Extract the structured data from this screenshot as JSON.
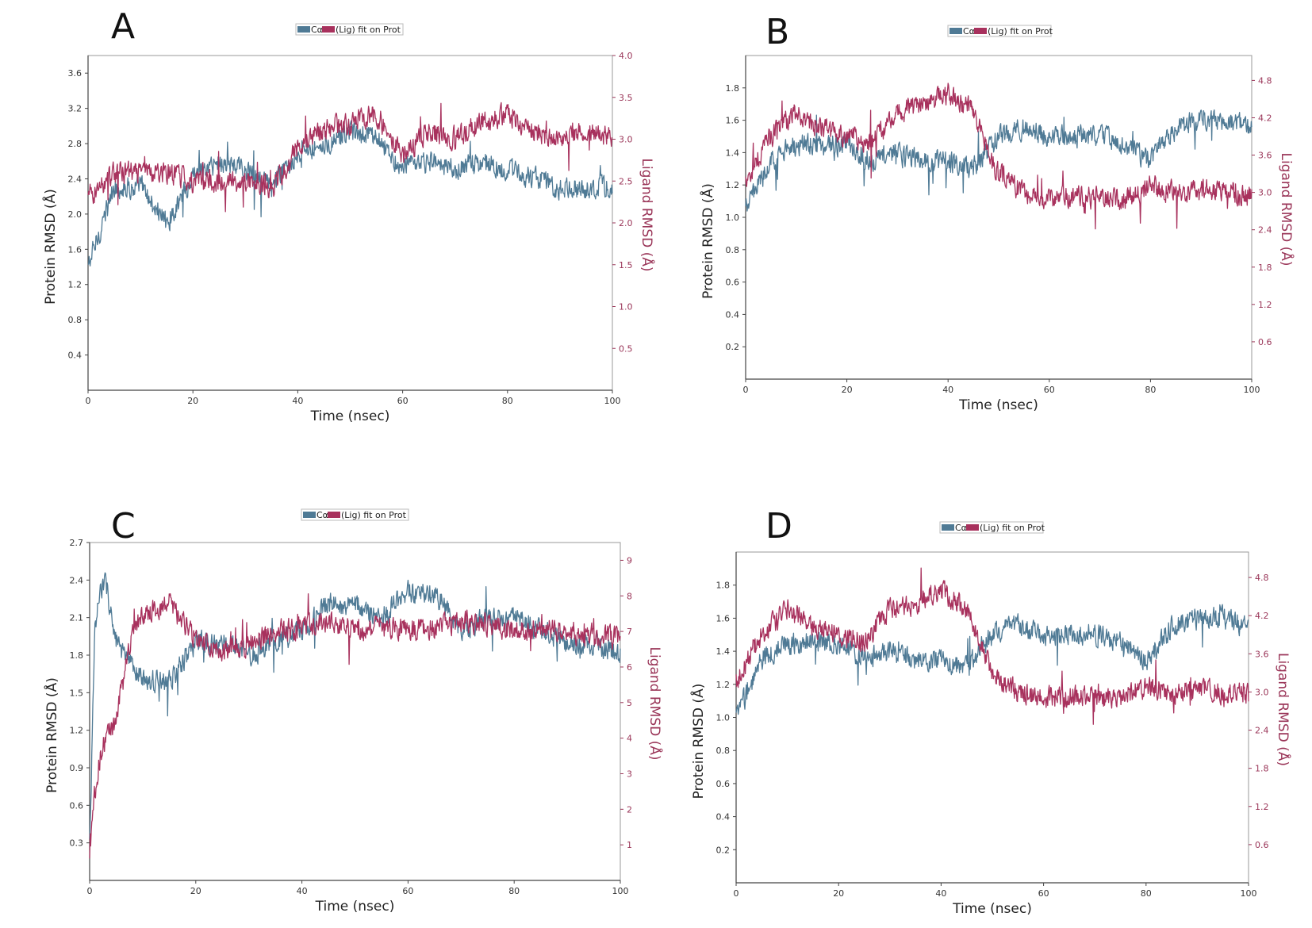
{
  "colors": {
    "protein": "#4f7a95",
    "ligand": "#a8315d",
    "axis": "#555555",
    "right_axis_text": "#9a3558"
  },
  "chart_data": [
    {
      "panel": "A",
      "type": "line",
      "legend": [
        "Cα",
        "(Lig) fit on Prot"
      ],
      "xlabel": "Time (nsec)",
      "ylabel": "Protein RMSD (Å)",
      "y2label": "Ligand RMSD (Å)",
      "xlim": [
        0,
        100
      ],
      "ylim": [
        0,
        3.8
      ],
      "y2lim": [
        0,
        4.0
      ],
      "x_ticks": [
        "0",
        "20",
        "40",
        "60",
        "80",
        "100"
      ],
      "y_ticks": [
        "0.4",
        "0.8",
        "1.2",
        "1.6",
        "2.0",
        "2.4",
        "2.8",
        "3.2",
        "3.6"
      ],
      "y2_ticks": [
        "0.5",
        "1.0",
        "1.5",
        "2.0",
        "2.5",
        "3.0",
        "3.5",
        "4.0"
      ],
      "series": [
        {
          "name": "Protein RMSD (Cα)",
          "axis": "left",
          "x": [
            0,
            5,
            10,
            15,
            20,
            25,
            30,
            35,
            40,
            45,
            50,
            55,
            60,
            65,
            70,
            75,
            80,
            85,
            90,
            95,
            100
          ],
          "y": [
            1.4,
            2.3,
            2.3,
            1.9,
            2.4,
            2.6,
            2.5,
            2.3,
            2.7,
            2.8,
            2.9,
            2.9,
            2.5,
            2.6,
            2.5,
            2.6,
            2.5,
            2.4,
            2.3,
            2.3,
            2.3
          ]
        },
        {
          "name": "Ligand RMSD (Lig fit on Prot)",
          "axis": "right",
          "x": [
            0,
            5,
            10,
            15,
            20,
            25,
            30,
            35,
            40,
            45,
            50,
            55,
            60,
            65,
            70,
            75,
            80,
            85,
            90,
            95,
            100
          ],
          "y": [
            2.3,
            2.6,
            2.6,
            2.6,
            2.5,
            2.5,
            2.5,
            2.4,
            2.9,
            3.1,
            3.2,
            3.3,
            2.8,
            3.1,
            3.0,
            3.2,
            3.3,
            3.1,
            3.0,
            3.1,
            3.0
          ]
        }
      ]
    },
    {
      "panel": "B",
      "type": "line",
      "legend": [
        "Cα",
        "(Lig) fit on Prot"
      ],
      "xlabel": "Time (nsec)",
      "ylabel": "Protein RMSD (Å)",
      "y2label": "Ligand RMSD (Å)",
      "xlim": [
        0,
        100
      ],
      "ylim": [
        0,
        2.0
      ],
      "y2lim": [
        0,
        5.2
      ],
      "x_ticks": [
        "0",
        "20",
        "40",
        "60",
        "80",
        "100"
      ],
      "y_ticks": [
        "0.2",
        "0.4",
        "0.6",
        "0.8",
        "1.0",
        "1.2",
        "1.4",
        "1.6",
        "1.8"
      ],
      "y2_ticks": [
        "0.6",
        "1.2",
        "1.8",
        "2.4",
        "3.0",
        "3.6",
        "4.2",
        "4.8"
      ],
      "series": [
        {
          "name": "Protein RMSD (Cα)",
          "axis": "left",
          "x": [
            0,
            5,
            10,
            15,
            20,
            25,
            30,
            35,
            40,
            45,
            50,
            55,
            60,
            65,
            70,
            75,
            80,
            85,
            90,
            95,
            100
          ],
          "y": [
            1.05,
            1.35,
            1.45,
            1.45,
            1.45,
            1.35,
            1.4,
            1.35,
            1.35,
            1.3,
            1.5,
            1.55,
            1.5,
            1.5,
            1.5,
            1.45,
            1.35,
            1.55,
            1.6,
            1.6,
            1.55
          ]
        },
        {
          "name": "Ligand RMSD (Lig fit on Prot)",
          "axis": "right",
          "x": [
            0,
            5,
            10,
            15,
            20,
            25,
            30,
            35,
            40,
            45,
            50,
            55,
            60,
            65,
            70,
            75,
            80,
            85,
            90,
            95,
            100
          ],
          "y": [
            3.2,
            3.9,
            4.3,
            4.0,
            3.9,
            3.8,
            4.3,
            4.4,
            4.6,
            4.3,
            3.3,
            3.0,
            2.9,
            2.95,
            2.9,
            2.9,
            3.1,
            3.0,
            3.05,
            3.0,
            2.95
          ]
        }
      ]
    },
    {
      "panel": "C",
      "type": "line",
      "legend": [
        "Cα",
        "(Lig) fit on Prot"
      ],
      "xlabel": "Time (nsec)",
      "ylabel": "Protein RMSD (Å)",
      "y2label": "Ligand RMSD (Å)",
      "xlim": [
        0,
        100
      ],
      "ylim": [
        0,
        2.7
      ],
      "y2lim": [
        0,
        9.5
      ],
      "x_ticks": [
        "0",
        "20",
        "40",
        "60",
        "80",
        "100"
      ],
      "y_ticks": [
        "0.3",
        "0.6",
        "0.9",
        "1.2",
        "1.5",
        "1.8",
        "2.1",
        "2.4",
        "2.7"
      ],
      "y2_ticks": [
        "1",
        "2",
        "3",
        "4",
        "5",
        "6",
        "7",
        "8",
        "9"
      ],
      "series": [
        {
          "name": "Protein RMSD (Cα)",
          "axis": "left",
          "x": [
            0,
            1,
            2,
            3,
            5,
            8,
            10,
            15,
            20,
            25,
            30,
            35,
            40,
            45,
            50,
            55,
            60,
            65,
            70,
            75,
            80,
            85,
            90,
            95,
            100
          ],
          "y": [
            0.3,
            2.0,
            2.3,
            2.4,
            1.9,
            1.7,
            1.6,
            1.6,
            1.9,
            1.9,
            1.8,
            1.9,
            2.0,
            2.2,
            2.2,
            2.1,
            2.3,
            2.3,
            2.0,
            2.1,
            2.1,
            2.0,
            1.9,
            1.9,
            1.8
          ]
        },
        {
          "name": "Ligand RMSD (Lig fit on Prot)",
          "axis": "right",
          "x": [
            0,
            1,
            2,
            3,
            5,
            8,
            10,
            15,
            20,
            25,
            30,
            35,
            40,
            45,
            50,
            55,
            60,
            65,
            70,
            75,
            80,
            85,
            90,
            95,
            100
          ],
          "y": [
            0.5,
            2.5,
            3.5,
            4.0,
            4.5,
            7.0,
            7.5,
            7.8,
            6.8,
            6.5,
            6.6,
            7.0,
            7.1,
            7.3,
            7.0,
            7.1,
            7.0,
            7.1,
            7.3,
            7.2,
            7.0,
            7.1,
            7.0,
            6.9,
            6.8
          ]
        }
      ]
    },
    {
      "panel": "D",
      "type": "line",
      "legend": [
        "Cα",
        "(Lig) fit on Prot"
      ],
      "xlabel": "Time (nsec)",
      "ylabel": "Protein RMSD (Å)",
      "y2label": "Ligand RMSD (Å)",
      "xlim": [
        0,
        100
      ],
      "ylim": [
        0,
        2.0
      ],
      "y2lim": [
        0,
        5.2
      ],
      "x_ticks": [
        "0",
        "20",
        "40",
        "60",
        "80",
        "100"
      ],
      "y_ticks": [
        "0.2",
        "0.4",
        "0.6",
        "0.8",
        "1.0",
        "1.2",
        "1.4",
        "1.6",
        "1.8"
      ],
      "y2_ticks": [
        "0.6",
        "1.2",
        "1.8",
        "2.4",
        "3.0",
        "3.6",
        "4.2",
        "4.8"
      ],
      "series": [
        {
          "name": "Protein RMSD (Cα)",
          "axis": "left",
          "x": [
            0,
            5,
            10,
            15,
            20,
            25,
            30,
            35,
            40,
            45,
            50,
            55,
            60,
            65,
            70,
            75,
            80,
            85,
            90,
            95,
            100
          ],
          "y": [
            1.0,
            1.35,
            1.45,
            1.45,
            1.45,
            1.35,
            1.4,
            1.35,
            1.35,
            1.3,
            1.5,
            1.55,
            1.5,
            1.5,
            1.5,
            1.45,
            1.35,
            1.55,
            1.6,
            1.6,
            1.55
          ]
        },
        {
          "name": "Ligand RMSD (Lig fit on Prot)",
          "axis": "right",
          "x": [
            0,
            5,
            10,
            15,
            20,
            25,
            30,
            35,
            40,
            45,
            50,
            55,
            60,
            65,
            70,
            75,
            80,
            85,
            90,
            95,
            100
          ],
          "y": [
            3.2,
            3.9,
            4.3,
            4.0,
            3.9,
            3.8,
            4.3,
            4.4,
            4.6,
            4.3,
            3.3,
            3.0,
            2.9,
            2.95,
            2.9,
            2.9,
            3.1,
            3.0,
            3.05,
            3.0,
            2.95
          ]
        }
      ]
    }
  ]
}
